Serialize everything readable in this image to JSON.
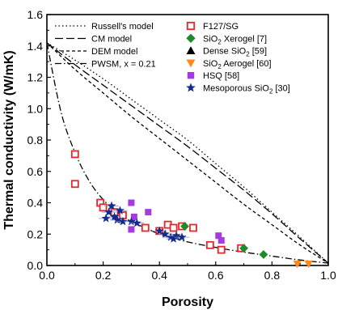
{
  "chart_data": {
    "type": "scatter",
    "xlabel": "Porosity",
    "ylabel": "Thermal conductivity (W/mK)",
    "xlim": [
      0.0,
      1.0
    ],
    "ylim": [
      0.0,
      1.6
    ],
    "xticks": [
      "0.0",
      "0.2",
      "0.4",
      "0.6",
      "0.8",
      "1.0"
    ],
    "yticks": [
      "0.0",
      "0.2",
      "0.4",
      "0.6",
      "0.8",
      "1.0",
      "1.2",
      "1.4",
      "1.6"
    ],
    "legend_position": "top",
    "models": [
      {
        "name": "Russell's model",
        "dash": "dotted",
        "x": [
          0.0,
          0.1,
          0.2,
          0.3,
          0.4,
          0.5,
          0.6,
          0.7,
          0.8,
          0.9,
          1.0
        ],
        "y": [
          1.42,
          1.31,
          1.19,
          1.06,
          0.93,
          0.8,
          0.65,
          0.5,
          0.34,
          0.18,
          0.015
        ]
      },
      {
        "name": "CM model",
        "dash": "long-dash",
        "x": [
          0.0,
          0.1,
          0.2,
          0.3,
          0.4,
          0.5,
          0.6,
          0.7,
          0.8,
          0.9,
          1.0
        ],
        "y": [
          1.42,
          1.28,
          1.15,
          1.02,
          0.89,
          0.76,
          0.62,
          0.48,
          0.33,
          0.17,
          0.015
        ]
      },
      {
        "name": "DEM model",
        "dash": "short-dash",
        "x": [
          0.0,
          0.1,
          0.2,
          0.3,
          0.4,
          0.5,
          0.6,
          0.7,
          0.8,
          0.9,
          1.0
        ],
        "y": [
          1.42,
          1.25,
          1.1,
          0.95,
          0.81,
          0.67,
          0.53,
          0.39,
          0.26,
          0.13,
          0.015
        ]
      },
      {
        "name": "PWSM, x = 0.21",
        "dash": "dash-dot",
        "x": [
          0.0,
          0.05,
          0.1,
          0.15,
          0.2,
          0.25,
          0.3,
          0.35,
          0.4,
          0.45,
          0.5,
          0.6,
          0.7,
          0.8,
          0.9,
          1.0
        ],
        "y": [
          1.42,
          0.98,
          0.72,
          0.54,
          0.42,
          0.34,
          0.28,
          0.24,
          0.2,
          0.175,
          0.15,
          0.115,
          0.085,
          0.06,
          0.035,
          0.015
        ]
      }
    ],
    "series": [
      {
        "name": "F127/SG",
        "marker": "open-square",
        "color": "#e8262a",
        "x": [
          0.1,
          0.1,
          0.19,
          0.2,
          0.24,
          0.26,
          0.27,
          0.35,
          0.4,
          0.43,
          0.45,
          0.48,
          0.52,
          0.58,
          0.62,
          0.69
        ],
        "y": [
          0.71,
          0.52,
          0.4,
          0.37,
          0.34,
          0.3,
          0.32,
          0.24,
          0.22,
          0.26,
          0.24,
          0.25,
          0.24,
          0.13,
          0.1,
          0.11
        ]
      },
      {
        "name": "SiO2 Xerogel [7]",
        "label_main": "SiO",
        "label_sub": "2",
        "label_rest": " Xerogel [7]",
        "marker": "diamond",
        "color": "#1f8a2a",
        "x": [
          0.49,
          0.7,
          0.77
        ],
        "y": [
          0.25,
          0.11,
          0.07
        ]
      },
      {
        "name": "Dense SiO2 [59]",
        "label_main": "Dense SiO",
        "label_sub": "2",
        "label_rest": " [59]",
        "marker": "triangle-up",
        "color": "#000000",
        "x": [],
        "y": []
      },
      {
        "name": "SiO2 Aerogel [60]",
        "label_main": "SiO",
        "label_sub": "2",
        "label_rest": " Aerogel [60]",
        "marker": "triangle-down",
        "color": "#ff8a1c",
        "x": [
          0.89,
          0.93
        ],
        "y": [
          0.01,
          0.01
        ]
      },
      {
        "name": "HSQ [58]",
        "marker": "filled-square",
        "color": "#a33be0",
        "x": [
          0.3,
          0.31,
          0.36,
          0.61,
          0.62,
          0.3
        ],
        "y": [
          0.4,
          0.31,
          0.34,
          0.19,
          0.16,
          0.23
        ]
      },
      {
        "name": "Mesoporous SiO2 [30]",
        "label_main": "Mesoporous SiO",
        "label_sub": "2",
        "label_rest": " [30]",
        "marker": "star",
        "color": "#142a8c",
        "x": [
          0.21,
          0.22,
          0.23,
          0.24,
          0.25,
          0.26,
          0.27,
          0.3,
          0.32,
          0.4,
          0.42,
          0.44,
          0.45,
          0.46,
          0.48
        ],
        "y": [
          0.3,
          0.34,
          0.38,
          0.31,
          0.29,
          0.35,
          0.28,
          0.28,
          0.27,
          0.22,
          0.2,
          0.18,
          0.17,
          0.19,
          0.18
        ]
      }
    ]
  }
}
